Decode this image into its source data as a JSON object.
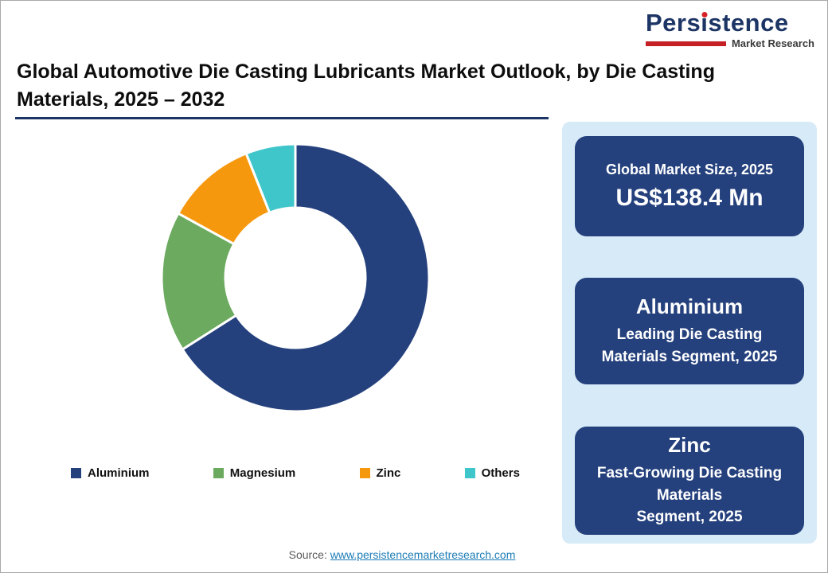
{
  "logo": {
    "name_pre": "Pers",
    "name_i": "i",
    "name_post": "stence",
    "subtitle": "Market Research"
  },
  "title": "Global Automotive Die Casting Lubricants Market Outlook, by Die Casting Materials, 2025 – 2032",
  "chart_data": {
    "type": "pie",
    "donut": true,
    "title": "Global Automotive Die Casting Lubricants Market Outlook, by Die Casting Materials, 2025 – 2032",
    "unit": "%",
    "estimated_from_arc_angles": true,
    "legend_position": "bottom",
    "segments": [
      {
        "label": "Aluminium",
        "value": 66,
        "color": "#25417D"
      },
      {
        "label": "Magnesium",
        "value": 17,
        "color": "#6BAA5F"
      },
      {
        "label": "Zinc",
        "value": 11,
        "color": "#F6980E"
      },
      {
        "label": "Others",
        "value": 6,
        "color": "#3FC6CB"
      }
    ]
  },
  "panel": {
    "boxes": [
      {
        "line1": "Global Market Size, 2025",
        "line2": "US$138.4 Mn"
      },
      {
        "heading": "Aluminium",
        "sub": "Leading Die Casting\nMaterials Segment, 2025"
      },
      {
        "heading": "Zinc",
        "sub": "Fast-Growing Die Casting Materials\nSegment, 2025"
      }
    ]
  },
  "source": {
    "label": "Source: ",
    "link": "www.persistencemarketresearch.com"
  }
}
